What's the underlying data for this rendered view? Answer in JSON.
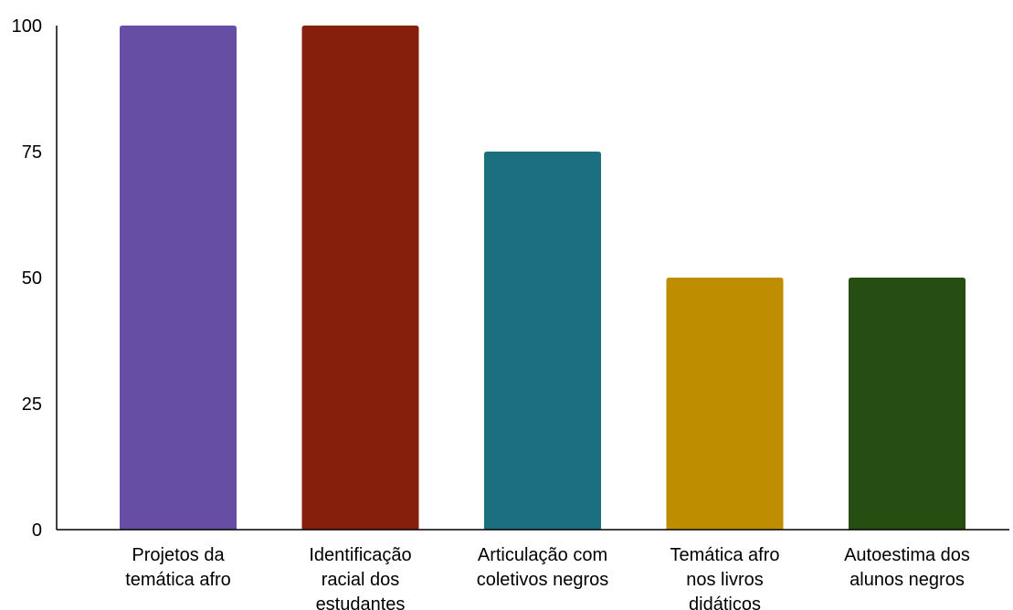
{
  "chart_data": {
    "type": "bar",
    "title": "",
    "xlabel": "",
    "ylabel": "",
    "ylim": [
      0,
      100
    ],
    "yticks": [
      "0",
      "25",
      "50",
      "75",
      "100"
    ],
    "grid": false,
    "legend": "none",
    "categories": [
      [
        "Projetos da",
        "temática afro"
      ],
      [
        "Identificação",
        "racial dos",
        "estudantes"
      ],
      [
        "Articulação com",
        "coletivos negros"
      ],
      [
        "Temática afro",
        "nos livros",
        "didáticos"
      ],
      [
        "Autoestima dos",
        "alunos negros"
      ]
    ],
    "values": [
      100,
      100,
      75,
      50,
      50
    ],
    "colors": [
      "#654ea3",
      "#861f0c",
      "#1b6f7e",
      "#bf8e00",
      "#264d12"
    ]
  }
}
